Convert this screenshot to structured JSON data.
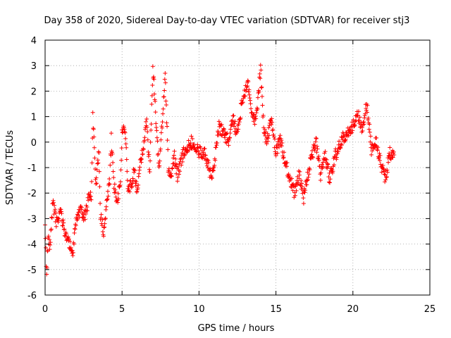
{
  "chart_data": {
    "type": "scatter",
    "title": "Day 358 of 2020, Sidereal Day-to-day VTEC variation (SDTVAR) for receiver stj3",
    "xlabel": "GPS time / hours",
    "ylabel": "SDTVAR / TECUs",
    "xlim": [
      0,
      25
    ],
    "ylim": [
      -6,
      4
    ],
    "xticks": [
      "0",
      "5",
      "10",
      "15",
      "20",
      "25"
    ],
    "yticks": [
      "-6",
      "-5",
      "-4",
      "-3",
      "-2",
      "-1",
      "0",
      "1",
      "2",
      "3",
      "4"
    ],
    "grid": true,
    "marker": "+",
    "series_color": "#ff0000",
    "trend": [
      [
        0.0,
        -3.0
      ],
      [
        0.1,
        -5.3
      ],
      [
        0.2,
        -3.6
      ],
      [
        0.3,
        -4.2
      ],
      [
        0.5,
        -2.4
      ],
      [
        0.8,
        -3.3
      ],
      [
        1.0,
        -2.7
      ],
      [
        1.3,
        -3.5
      ],
      [
        1.5,
        -3.9
      ],
      [
        1.8,
        -4.3
      ],
      [
        2.0,
        -3.2
      ],
      [
        2.3,
        -2.6
      ],
      [
        2.5,
        -3.0
      ],
      [
        2.7,
        -2.6
      ],
      [
        2.9,
        -2.0
      ],
      [
        3.0,
        -2.3
      ],
      [
        3.1,
        1.1
      ],
      [
        3.3,
        -1.8
      ],
      [
        3.5,
        -0.3
      ],
      [
        3.6,
        -2.8
      ],
      [
        3.8,
        -3.5
      ],
      [
        4.0,
        -2.4
      ],
      [
        4.2,
        -1.5
      ],
      [
        4.3,
        0.1
      ],
      [
        4.5,
        -1.8
      ],
      [
        4.7,
        -2.3
      ],
      [
        4.9,
        -1.6
      ],
      [
        5.0,
        0.4
      ],
      [
        5.2,
        0.6
      ],
      [
        5.4,
        -2.0
      ],
      [
        5.6,
        -1.6
      ],
      [
        5.8,
        -1.2
      ],
      [
        6.0,
        -1.9
      ],
      [
        6.2,
        -0.8
      ],
      [
        6.4,
        -0.2
      ],
      [
        6.6,
        0.9
      ],
      [
        6.8,
        -1.2
      ],
      [
        7.0,
        3.0
      ],
      [
        7.2,
        0.9
      ],
      [
        7.4,
        -1.0
      ],
      [
        7.6,
        0.7
      ],
      [
        7.8,
        2.8
      ],
      [
        8.0,
        -1.0
      ],
      [
        8.2,
        -1.3
      ],
      [
        8.4,
        -0.6
      ],
      [
        8.6,
        -1.3
      ],
      [
        9.0,
        -0.4
      ],
      [
        9.5,
        0.0
      ],
      [
        10.0,
        -0.4
      ],
      [
        10.4,
        -0.4
      ],
      [
        10.8,
        -1.4
      ],
      [
        11.0,
        -0.8
      ],
      [
        11.3,
        0.6
      ],
      [
        11.6,
        0.4
      ],
      [
        11.9,
        0.0
      ],
      [
        12.2,
        0.9
      ],
      [
        12.5,
        0.3
      ],
      [
        12.8,
        1.6
      ],
      [
        13.0,
        2.0
      ],
      [
        13.2,
        2.3
      ],
      [
        13.4,
        1.3
      ],
      [
        13.6,
        0.8
      ],
      [
        13.8,
        1.4
      ],
      [
        14.0,
        2.9
      ],
      [
        14.2,
        0.6
      ],
      [
        14.4,
        0.0
      ],
      [
        14.7,
        0.8
      ],
      [
        15.0,
        -0.4
      ],
      [
        15.3,
        0.1
      ],
      [
        15.6,
        -0.8
      ],
      [
        15.9,
        -1.4
      ],
      [
        16.2,
        -2.0
      ],
      [
        16.5,
        -1.2
      ],
      [
        16.8,
        -2.2
      ],
      [
        17.0,
        -1.5
      ],
      [
        17.3,
        -0.6
      ],
      [
        17.6,
        0.0
      ],
      [
        17.9,
        -1.3
      ],
      [
        18.2,
        -0.5
      ],
      [
        18.5,
        -1.5
      ],
      [
        18.8,
        -0.6
      ],
      [
        19.1,
        -0.2
      ],
      [
        19.4,
        0.2
      ],
      [
        19.7,
        0.4
      ],
      [
        20.0,
        0.6
      ],
      [
        20.3,
        1.2
      ],
      [
        20.6,
        0.5
      ],
      [
        20.9,
        1.5
      ],
      [
        21.2,
        -0.3
      ],
      [
        21.5,
        0.0
      ],
      [
        21.8,
        -0.8
      ],
      [
        22.1,
        -1.5
      ],
      [
        22.4,
        -0.4
      ],
      [
        22.7,
        -0.6
      ]
    ]
  }
}
